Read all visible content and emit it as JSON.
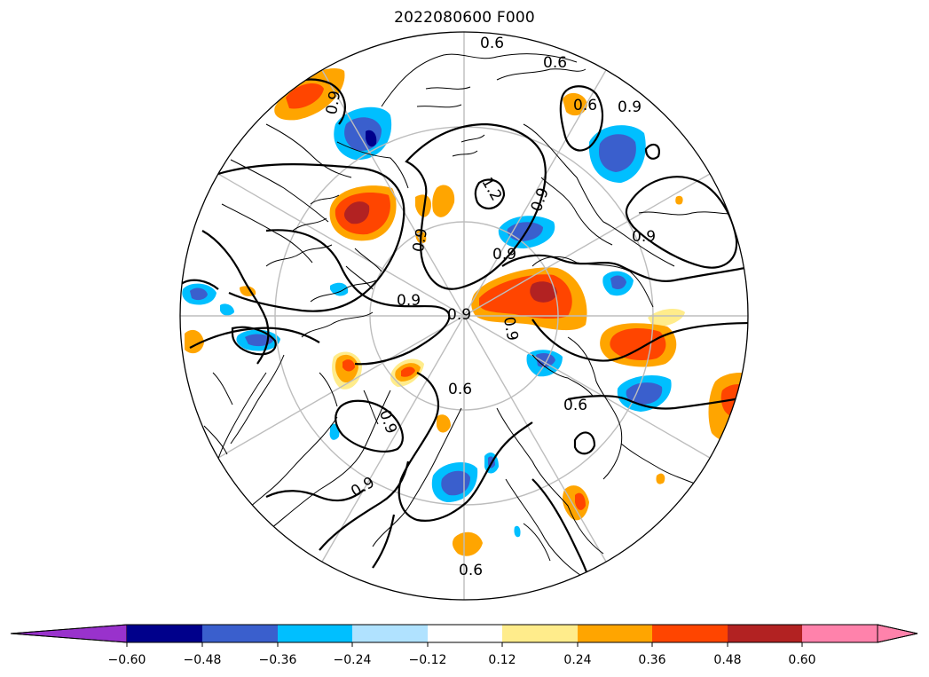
{
  "title": "2022080600 F000",
  "contour_labels": [
    "0.6",
    "0.6",
    "0.6",
    "0.9",
    "0.9",
    "0.9",
    "0.9",
    "0.9",
    "0.9",
    "0.9",
    "0.9",
    "0.9",
    "0.9",
    "1.2",
    "0.6",
    "0.6",
    "0.9",
    "0.6"
  ],
  "colorbar": {
    "ticks": [
      "−0.60",
      "−0.48",
      "−0.36",
      "−0.24",
      "−0.12",
      "0.12",
      "0.24",
      "0.36",
      "0.48",
      "0.60"
    ],
    "colors": [
      "#9932cc",
      "#00008b",
      "#3a5fcd",
      "#00bfff",
      "#b0e2ff",
      "#ffffff",
      "#ffec8b",
      "#ffa500",
      "#ff4500",
      "#b22222",
      "#ff82ab"
    ]
  },
  "anomaly_colors": {
    "neg_weak": "#00bfff",
    "neg_mid": "#3a5fcd",
    "neg_strong": "#00008b",
    "pos_weak": "#ffec8b",
    "pos_mid": "#ffa500",
    "pos_strong": "#ff4500",
    "pos_very": "#b22222"
  }
}
